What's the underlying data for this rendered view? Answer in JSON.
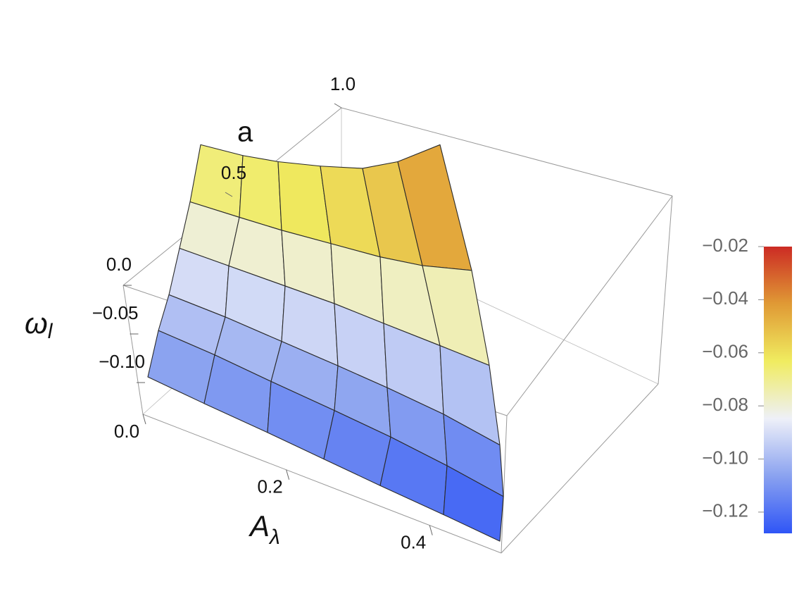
{
  "chart_data": {
    "type": "surface3d",
    "xlabel": {
      "base": "A",
      "sub": "λ"
    },
    "ylabel": "a",
    "zlabel": {
      "base": "ω",
      "sub": "l"
    },
    "xticks": [
      {
        "value": 0,
        "label": "0.0"
      },
      0.2,
      0.4
    ],
    "yticks": [
      0.5,
      {
        "value": 1,
        "label": "1.0"
      }
    ],
    "zticks": [
      {
        "value": 0,
        "label": "0.0"
      },
      {
        "value": -0.05,
        "label": "−0.05"
      },
      {
        "value": -0.1,
        "label": "−0.10"
      }
    ],
    "surface": {
      "a": [
        0,
        0.2,
        0.4,
        0.6,
        0.8,
        1
      ],
      "A": [
        [
          0,
          0.08,
          0.17,
          0.25,
          0.33,
          0.42,
          0.5
        ],
        [
          0,
          0.08,
          0.16,
          0.25,
          0.33,
          0.41,
          0.49
        ],
        [
          0,
          0.08,
          0.16,
          0.24,
          0.31,
          0.39,
          0.47
        ],
        [
          0,
          0.07,
          0.15,
          0.22,
          0.29,
          0.37,
          0.44
        ],
        [
          0,
          0.07,
          0.13,
          0.2,
          0.27,
          0.33,
          0.4
        ],
        [
          0,
          0.06,
          0.11,
          0.17,
          0.23,
          0.28,
          0.34
        ]
      ],
      "z": [
        [
          -0.11,
          -0.113,
          -0.116,
          -0.119,
          -0.122,
          -0.125,
          -0.128
        ],
        [
          -0.1,
          -0.102,
          -0.105,
          -0.108,
          -0.111,
          -0.115,
          -0.12
        ],
        [
          -0.095,
          -0.096,
          -0.098,
          -0.1,
          -0.102,
          -0.105,
          -0.11
        ],
        [
          -0.085,
          -0.085,
          -0.085,
          -0.085,
          -0.086,
          -0.087,
          -0.088
        ],
        [
          -0.075,
          -0.074,
          -0.073,
          -0.071,
          -0.069,
          -0.066,
          -0.06
        ],
        [
          -0.06,
          -0.058,
          -0.055,
          -0.05,
          -0.044,
          -0.035,
          -0.02
        ]
      ]
    },
    "colorbar": {
      "zlim": [
        -0.128,
        -0.02
      ],
      "ticks": [
        {
          "value": -0.02,
          "label": "−0.02"
        },
        {
          "value": -0.04,
          "label": "−0.04"
        },
        {
          "value": -0.06,
          "label": "−0.06"
        },
        {
          "value": -0.08,
          "label": "−0.08"
        },
        {
          "value": -0.1,
          "label": "−0.10"
        },
        {
          "value": -0.12,
          "label": "−0.12"
        }
      ],
      "colors": [
        "#2f55f6",
        "#8aa2f0",
        "#eef0f8",
        "#f0ec60",
        "#e09a35",
        "#cc2b24"
      ]
    }
  }
}
